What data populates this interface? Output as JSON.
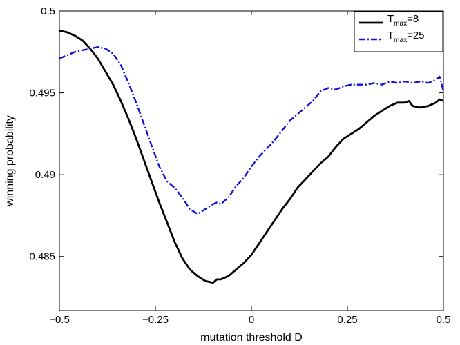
{
  "chart_data": {
    "type": "line",
    "title": "",
    "xlabel": "mutation threshold D",
    "ylabel": "winning probability",
    "xlim": [
      -0.5,
      0.5
    ],
    "ylim": [
      0.4817,
      0.5
    ],
    "xticks": [
      -0.5,
      -0.25,
      0,
      0.25,
      0.5
    ],
    "xtick_labels": [
      "−0.5",
      "−0.25",
      "0",
      "0.25",
      "0.5"
    ],
    "yticks": [
      0.485,
      0.49,
      0.495,
      0.5
    ],
    "ytick_labels": [
      "0.485",
      "0.49",
      "0.495",
      "0.5"
    ],
    "grid": false,
    "legend_position": "top-right",
    "series": [
      {
        "name": "T_max=8",
        "legend_main": "T",
        "legend_sub": "max",
        "legend_suffix": "=8",
        "color": "#000000",
        "style": "solid",
        "x": [
          -0.5,
          -0.48,
          -0.46,
          -0.44,
          -0.42,
          -0.4,
          -0.38,
          -0.36,
          -0.34,
          -0.32,
          -0.3,
          -0.28,
          -0.26,
          -0.24,
          -0.22,
          -0.2,
          -0.18,
          -0.16,
          -0.14,
          -0.12,
          -0.1,
          -0.09,
          -0.08,
          -0.06,
          -0.04,
          -0.02,
          0,
          0.02,
          0.04,
          0.06,
          0.08,
          0.1,
          0.12,
          0.14,
          0.16,
          0.18,
          0.2,
          0.22,
          0.24,
          0.26,
          0.28,
          0.3,
          0.32,
          0.34,
          0.36,
          0.38,
          0.4,
          0.41,
          0.42,
          0.44,
          0.46,
          0.48,
          0.49,
          0.5
        ],
        "y": [
          0.4988,
          0.4987,
          0.4985,
          0.4982,
          0.4977,
          0.4971,
          0.4963,
          0.4955,
          0.4945,
          0.4934,
          0.4922,
          0.4909,
          0.4896,
          0.4883,
          0.4871,
          0.4859,
          0.4849,
          0.4842,
          0.4838,
          0.4835,
          0.4834,
          0.4836,
          0.4836,
          0.4838,
          0.4842,
          0.4846,
          0.4851,
          0.4858,
          0.4865,
          0.4872,
          0.4879,
          0.4885,
          0.4892,
          0.4897,
          0.4902,
          0.4907,
          0.4911,
          0.4917,
          0.4922,
          0.4925,
          0.4928,
          0.4932,
          0.4936,
          0.4939,
          0.4942,
          0.4944,
          0.4944,
          0.4945,
          0.4942,
          0.4941,
          0.4942,
          0.4944,
          0.4946,
          0.4945
        ]
      },
      {
        "name": "T_max=25",
        "legend_main": "T",
        "legend_sub": "max",
        "legend_suffix": "=25",
        "color": "#1010d8",
        "style": "dash-dot",
        "x": [
          -0.5,
          -0.48,
          -0.46,
          -0.44,
          -0.42,
          -0.4,
          -0.38,
          -0.36,
          -0.34,
          -0.32,
          -0.3,
          -0.28,
          -0.26,
          -0.24,
          -0.22,
          -0.2,
          -0.18,
          -0.16,
          -0.14,
          -0.12,
          -0.1,
          -0.09,
          -0.08,
          -0.06,
          -0.04,
          -0.02,
          0,
          0.02,
          0.04,
          0.06,
          0.08,
          0.1,
          0.12,
          0.14,
          0.16,
          0.18,
          0.2,
          0.22,
          0.24,
          0.26,
          0.28,
          0.3,
          0.32,
          0.34,
          0.36,
          0.38,
          0.4,
          0.42,
          0.44,
          0.46,
          0.48,
          0.49,
          0.5
        ],
        "y": [
          0.4971,
          0.4973,
          0.4975,
          0.4976,
          0.4977,
          0.4978,
          0.4977,
          0.4974,
          0.4967,
          0.4956,
          0.4944,
          0.4931,
          0.4918,
          0.4905,
          0.4896,
          0.4892,
          0.4886,
          0.4879,
          0.4876,
          0.4879,
          0.4882,
          0.4883,
          0.4882,
          0.4886,
          0.4893,
          0.4898,
          0.4905,
          0.4911,
          0.4916,
          0.4921,
          0.4927,
          0.4933,
          0.4937,
          0.4941,
          0.4945,
          0.4951,
          0.4953,
          0.4952,
          0.4954,
          0.4955,
          0.4955,
          0.4955,
          0.4956,
          0.4955,
          0.4957,
          0.4956,
          0.4957,
          0.4956,
          0.4957,
          0.4956,
          0.4958,
          0.496,
          0.4951
        ]
      }
    ]
  }
}
